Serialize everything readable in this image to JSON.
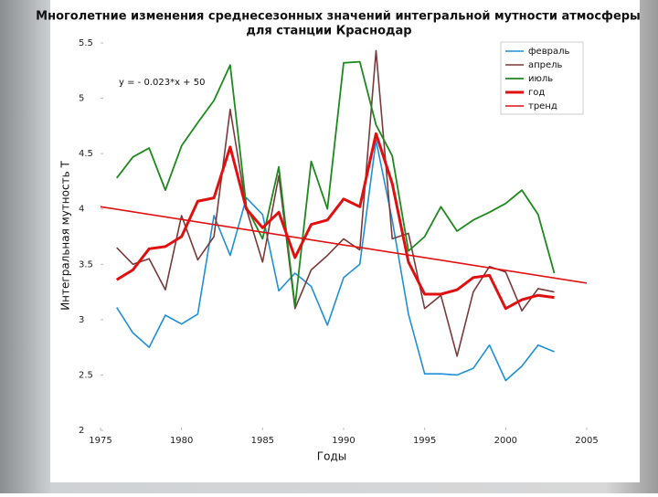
{
  "chart_data": {
    "type": "line",
    "title": [
      "Многолетние изменения среднесезонных значений интегральной мутности атмосферы",
      "для станции Краснодар"
    ],
    "x_label": "Годы",
    "y_label": "Интегральная мутность Т",
    "annotation": "y = - 0.023*x + 50",
    "x": [
      1976,
      1977,
      1978,
      1979,
      1980,
      1981,
      1982,
      1983,
      1984,
      1985,
      1986,
      1987,
      1988,
      1989,
      1990,
      1991,
      1992,
      1993,
      1994,
      1995,
      1996,
      1997,
      1998,
      1999,
      2000,
      2001,
      2002,
      2003
    ],
    "series": [
      {
        "name": "февраль",
        "color": "#1f8fd6",
        "width": 1.6,
        "values": [
          3.11,
          2.88,
          2.75,
          3.04,
          2.96,
          3.05,
          3.94,
          3.58,
          4.1,
          3.95,
          3.26,
          3.42,
          3.3,
          2.95,
          3.38,
          3.5,
          4.62,
          3.9,
          3.05,
          2.51,
          2.51,
          2.5,
          2.56,
          2.77,
          2.45,
          2.58,
          2.77,
          2.71
        ]
      },
      {
        "name": "апрель",
        "color": "#7a3a3a",
        "width": 1.6,
        "values": [
          3.65,
          3.5,
          3.55,
          3.27,
          3.94,
          3.54,
          3.75,
          4.9,
          4.0,
          3.52,
          4.3,
          3.1,
          3.45,
          3.58,
          3.73,
          3.63,
          5.43,
          3.73,
          3.78,
          3.1,
          3.22,
          2.67,
          3.25,
          3.48,
          3.43,
          3.08,
          3.28,
          3.25
        ]
      },
      {
        "name": "июль",
        "color": "#1e8a1e",
        "width": 1.8,
        "values": [
          4.28,
          4.47,
          4.55,
          4.17,
          4.57,
          4.78,
          4.98,
          5.3,
          4.02,
          3.73,
          4.38,
          3.12,
          4.43,
          4.0,
          5.32,
          5.33,
          4.76,
          4.48,
          3.62,
          3.75,
          4.02,
          3.8,
          3.9,
          3.97,
          4.05,
          4.17,
          3.95,
          3.42
        ]
      },
      {
        "name": "год",
        "color": "#e01010",
        "width": 3,
        "values": [
          3.36,
          3.45,
          3.64,
          3.66,
          3.75,
          4.07,
          4.1,
          4.56,
          4.0,
          3.83,
          3.97,
          3.56,
          3.86,
          3.9,
          4.09,
          4.02,
          4.68,
          4.23,
          3.52,
          3.23,
          3.23,
          3.27,
          3.38,
          3.4,
          3.1,
          3.18,
          3.22,
          3.2
        ]
      },
      {
        "name": "тренд",
        "color": "#e01010",
        "width": 1.6,
        "x": [
          1975,
          2005
        ],
        "values": [
          4.02,
          3.33
        ]
      }
    ],
    "xlim": [
      1975,
      2005
    ],
    "xticks": [
      1975,
      1980,
      1985,
      1990,
      1995,
      2000,
      2005
    ],
    "ylim": [
      2,
      5.5
    ],
    "yticks": [
      2,
      2.5,
      3,
      3.5,
      4,
      4.5,
      5,
      5.5
    ],
    "grid": false,
    "legend": "upper right"
  }
}
